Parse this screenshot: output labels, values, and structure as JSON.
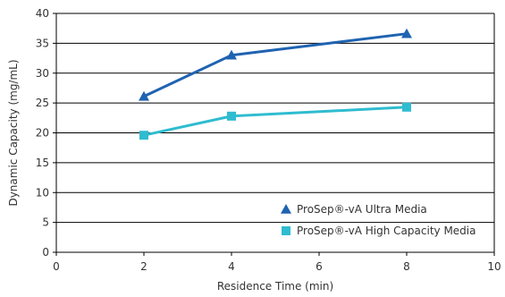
{
  "chart_data": {
    "type": "line",
    "title": "",
    "xlabel": "Residence Time (min)",
    "ylabel": "Dynamic Capacity (mg/mL)",
    "xlim": [
      0,
      10
    ],
    "ylim": [
      0,
      40
    ],
    "xticks": [
      0,
      2,
      4,
      6,
      8,
      10
    ],
    "yticks": [
      0,
      5,
      10,
      15,
      20,
      25,
      30,
      35,
      40
    ],
    "grid": "horizontal",
    "legend_position": "bottom-right",
    "series": [
      {
        "name": "ProSep®-vA Ultra Media",
        "marker": "triangle",
        "color": "#1f63b1",
        "x": [
          2,
          4,
          8
        ],
        "y": [
          26.1,
          33.0,
          36.6
        ]
      },
      {
        "name": "ProSep®-vA High Capacity Media",
        "marker": "square",
        "color": "#2fbcd0",
        "x": [
          2,
          4,
          8
        ],
        "y": [
          19.6,
          22.8,
          24.3
        ]
      }
    ]
  }
}
